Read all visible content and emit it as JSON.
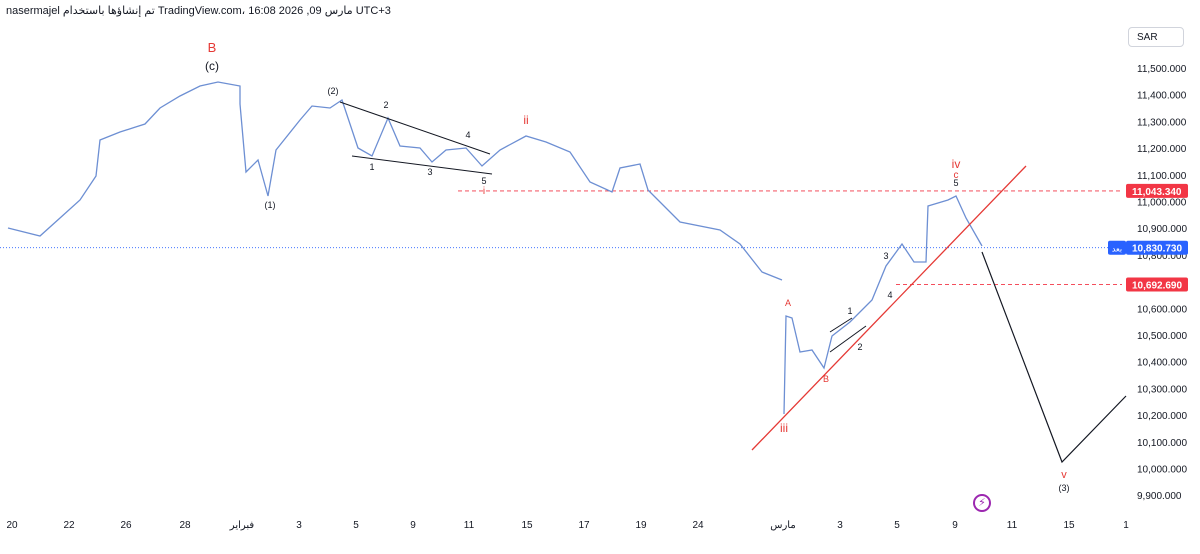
{
  "header": {
    "text": "nasermajel تم إنشاؤها باستخدام TradingView.com، 16:08 2026 ,09 مارس UTC+3"
  },
  "currency_button": {
    "label": "SAR"
  },
  "colors": {
    "price_line": "#6d8fd3",
    "wave_red": "#e53935",
    "wave_black": "#131722",
    "current_blue": "#2962ff",
    "level_red": "#f23645",
    "bolt": "#9c27b0"
  },
  "icons": {
    "alert": "lightning-bolt-icon"
  },
  "chart_data": {
    "type": "line",
    "title": "",
    "xlabel": "",
    "ylabel": "",
    "currency": "SAR",
    "y_range": [
      9850000,
      11650000
    ],
    "x_tick_labels": [
      "20",
      "22",
      "26",
      "28",
      "فبراير",
      "3",
      "5",
      "9",
      "11",
      "15",
      "17",
      "19",
      "24",
      "مارس",
      "3",
      "5",
      "9",
      "11",
      "15",
      "1"
    ],
    "y_tick_labels": [
      "11,500.000",
      "11,400.000",
      "11,300.000",
      "11,200.000",
      "11,100.000",
      "11,000.000",
      "10,900.000",
      "10,800.000",
      "10,600.000",
      "10,500.000",
      "10,400.000",
      "10,300.000",
      "10,200.000",
      "10,100.000",
      "10,000.000",
      "9,900.000"
    ],
    "price_labels": [
      {
        "text": "11,043.340",
        "value": 11043.34,
        "style": "red"
      },
      {
        "text": "10,830.730",
        "value": 10830.73,
        "style": "blue",
        "tag": "بعد"
      },
      {
        "text": "10,692.690",
        "value": 10692.69,
        "style": "red"
      }
    ],
    "price_series": {
      "name": "",
      "x": [
        0,
        1,
        2,
        3,
        4,
        5,
        6,
        7,
        8,
        9,
        10,
        11,
        12,
        13,
        14,
        15,
        16,
        17,
        18,
        19,
        20,
        21,
        22,
        23,
        24,
        25,
        26,
        27,
        28,
        29,
        30,
        31,
        32,
        33,
        34,
        35,
        36,
        37,
        38,
        39,
        40,
        41,
        42,
        43,
        44,
        45,
        46,
        47,
        48,
        49,
        50,
        51
      ],
      "y": [
        10880,
        10920,
        10900,
        10940,
        10980,
        11080,
        11240,
        11260,
        11300,
        11250,
        11300,
        11360,
        11420,
        11460,
        11470,
        11490,
        11450,
        11460,
        11110,
        11180,
        11040,
        11200,
        11300,
        11360,
        11380,
        11330,
        11250,
        11160,
        11280,
        11180,
        11210,
        11170,
        11190,
        11230,
        11170,
        11200,
        11230,
        11270,
        11250,
        11220,
        11190,
        11110,
        11140,
        11020,
        10960,
        10900,
        10860,
        10820,
        10730,
        10250,
        10600,
        10480
      ]
    },
    "annotations": [
      {
        "text": "B",
        "color": "red",
        "x": 28.7,
        "y": 11620
      },
      {
        "text": "(c)",
        "color": "black",
        "x": 28.7,
        "y": 11545
      },
      {
        "text": "(1)",
        "color": "black",
        "x": 1.6,
        "y": 10990
      },
      {
        "text": "(2)",
        "color": "black",
        "x": 4.3,
        "y": 11400
      },
      {
        "text": "ii",
        "color": "red",
        "x": 14.9,
        "y": 11300
      },
      {
        "text": "i",
        "color": "red",
        "x": 12.3,
        "y": 11050
      },
      {
        "text": "iii",
        "color": "red",
        "x": 29.9,
        "y": 10125
      },
      {
        "text": "iv",
        "color": "red",
        "x": 39.3,
        "y": 11140
      },
      {
        "text": "c",
        "color": "red",
        "x": 39.3,
        "y": 11100
      },
      {
        "text": "v",
        "color": "red",
        "x": 43.1,
        "y": 9970
      },
      {
        "text": "(3)",
        "color": "black",
        "x": 43.1,
        "y": 9925
      },
      {
        "text": "A",
        "color": "red",
        "x": 31.3,
        "y": 10640
      },
      {
        "text": "B",
        "color": "red",
        "x": 35.6,
        "y": 10310
      }
    ]
  }
}
